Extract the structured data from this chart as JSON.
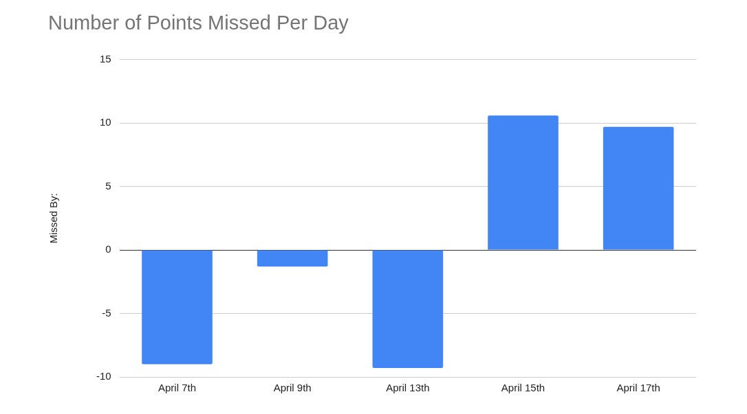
{
  "chart_data": {
    "type": "bar",
    "title": "Number of Points Missed Per Day",
    "ylabel": "Missed By:",
    "categories": [
      "April 7th",
      "April 9th",
      "April 13th",
      "April 15th",
      "April 17th"
    ],
    "values": [
      -9.0,
      -1.3,
      -9.3,
      10.6,
      9.7
    ],
    "color": "#4285f4",
    "ylim": [
      -10,
      15
    ],
    "yticks": [
      -10,
      -5,
      0,
      5,
      10,
      15
    ],
    "grid": "y"
  }
}
